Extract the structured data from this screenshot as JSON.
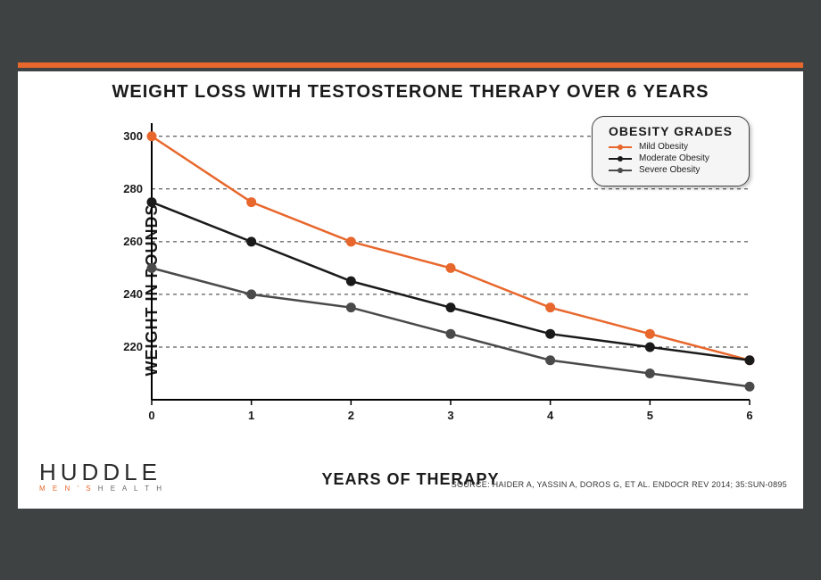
{
  "accent_color": "#e8672c",
  "title": {
    "text": "WEIGHT LOSS WITH TESTOSTERONE THERAPY OVER 6 YEARS",
    "fontsize": 20,
    "color": "#1a1a1a"
  },
  "chart": {
    "type": "line",
    "background": "#ffffff",
    "grid_color": "#333333",
    "grid_dash": "4,4",
    "axis_color": "#000000",
    "x": {
      "label": "YEARS OF THERAPY",
      "fontsize": 18,
      "ticks": [
        0,
        1,
        2,
        3,
        4,
        5,
        6
      ],
      "min": 0,
      "max": 6
    },
    "y": {
      "label": "WEIGHT IN POUNDS",
      "fontsize": 18,
      "ticks": [
        220,
        240,
        260,
        280,
        300
      ],
      "min": 200,
      "max": 305
    },
    "series": [
      {
        "name": "Mild Obesity",
        "color": "#e8672c",
        "line_width": 2.5,
        "marker": "circle",
        "marker_size": 5,
        "x": [
          0,
          1,
          2,
          3,
          4,
          5,
          6
        ],
        "y": [
          300,
          275,
          260,
          250,
          235,
          225,
          215
        ]
      },
      {
        "name": "Moderate Obesity",
        "color": "#1a1a1a",
        "line_width": 2.5,
        "marker": "circle",
        "marker_size": 5,
        "x": [
          0,
          1,
          2,
          3,
          4,
          5,
          6
        ],
        "y": [
          275,
          260,
          245,
          235,
          225,
          220,
          215
        ]
      },
      {
        "name": "Severe Obesity",
        "color": "#4a4a4a",
        "line_width": 2.5,
        "marker": "circle",
        "marker_size": 5,
        "x": [
          0,
          1,
          2,
          3,
          4,
          5,
          6
        ],
        "y": [
          250,
          240,
          235,
          225,
          215,
          210,
          205
        ]
      }
    ]
  },
  "legend": {
    "title": "OBESITY GRADES",
    "items": [
      "Mild Obesity",
      "Moderate Obesity",
      "Severe Obesity"
    ]
  },
  "source": "SOURCE: HAIDER A, YASSIN A, DOROS G, ET AL. ENDOCR REV 2014; 35:SUN-0895",
  "logo": {
    "primary": "HUDDLE",
    "sub_pre": "M E N ' S",
    "sub_post": "H E A L T H",
    "sub_pre_color": "#e8672c",
    "sub_post_color": "#666666"
  }
}
